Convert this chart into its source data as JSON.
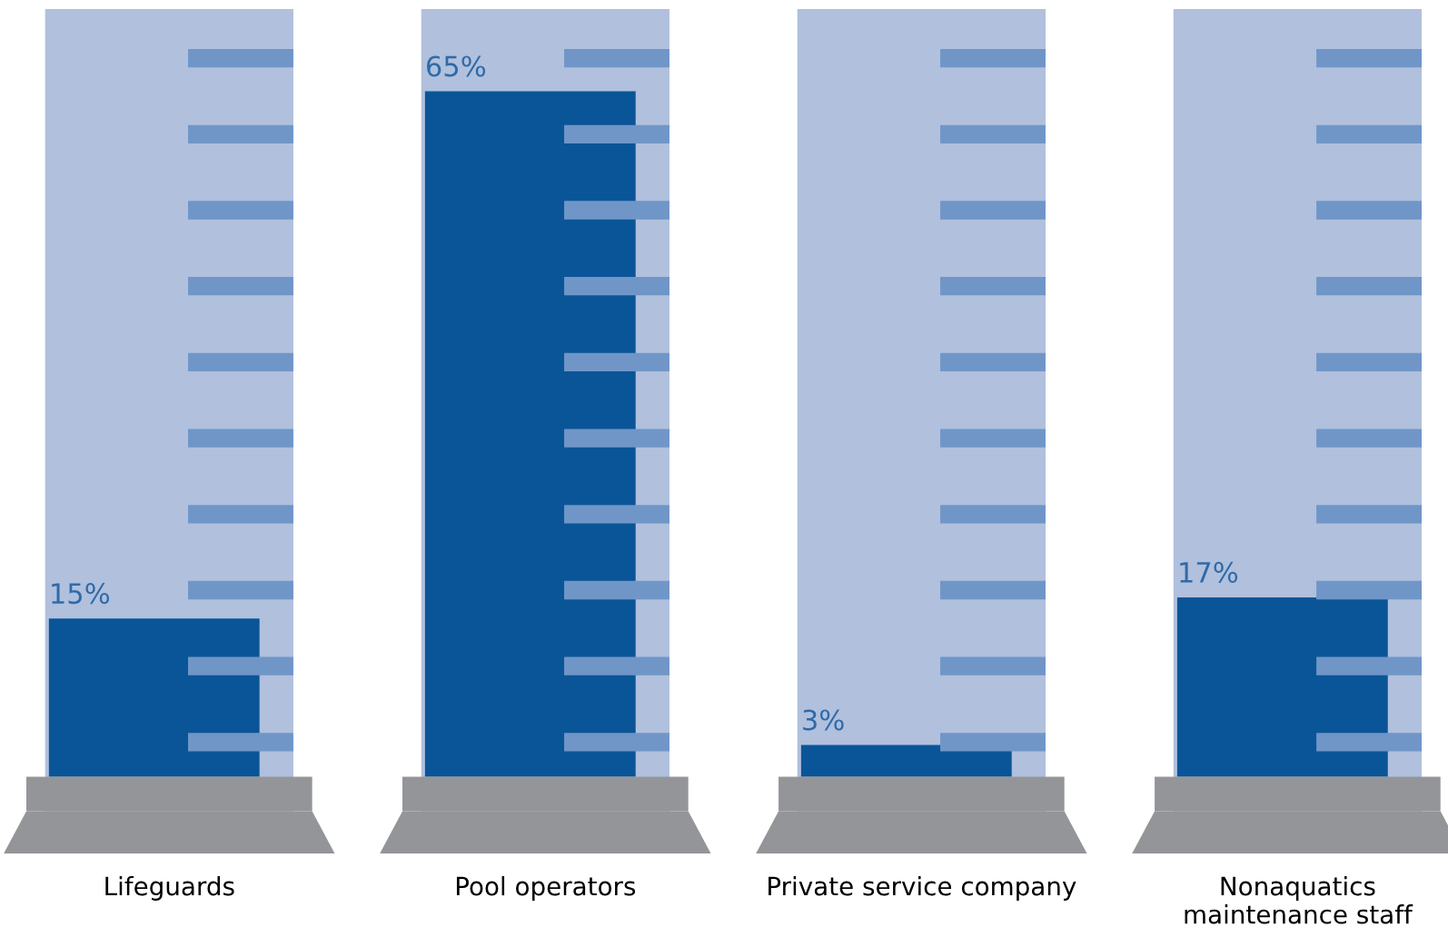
{
  "chart_data": {
    "type": "bar",
    "categories": [
      "Lifeguards",
      "Pool operators",
      "Private service company",
      "Nonaquatics\nmaintenance staff"
    ],
    "values": [
      15,
      65,
      3,
      17
    ],
    "value_labels": [
      "15%",
      "65%",
      "3%",
      "17%"
    ],
    "color": "#0a5597"
  }
}
